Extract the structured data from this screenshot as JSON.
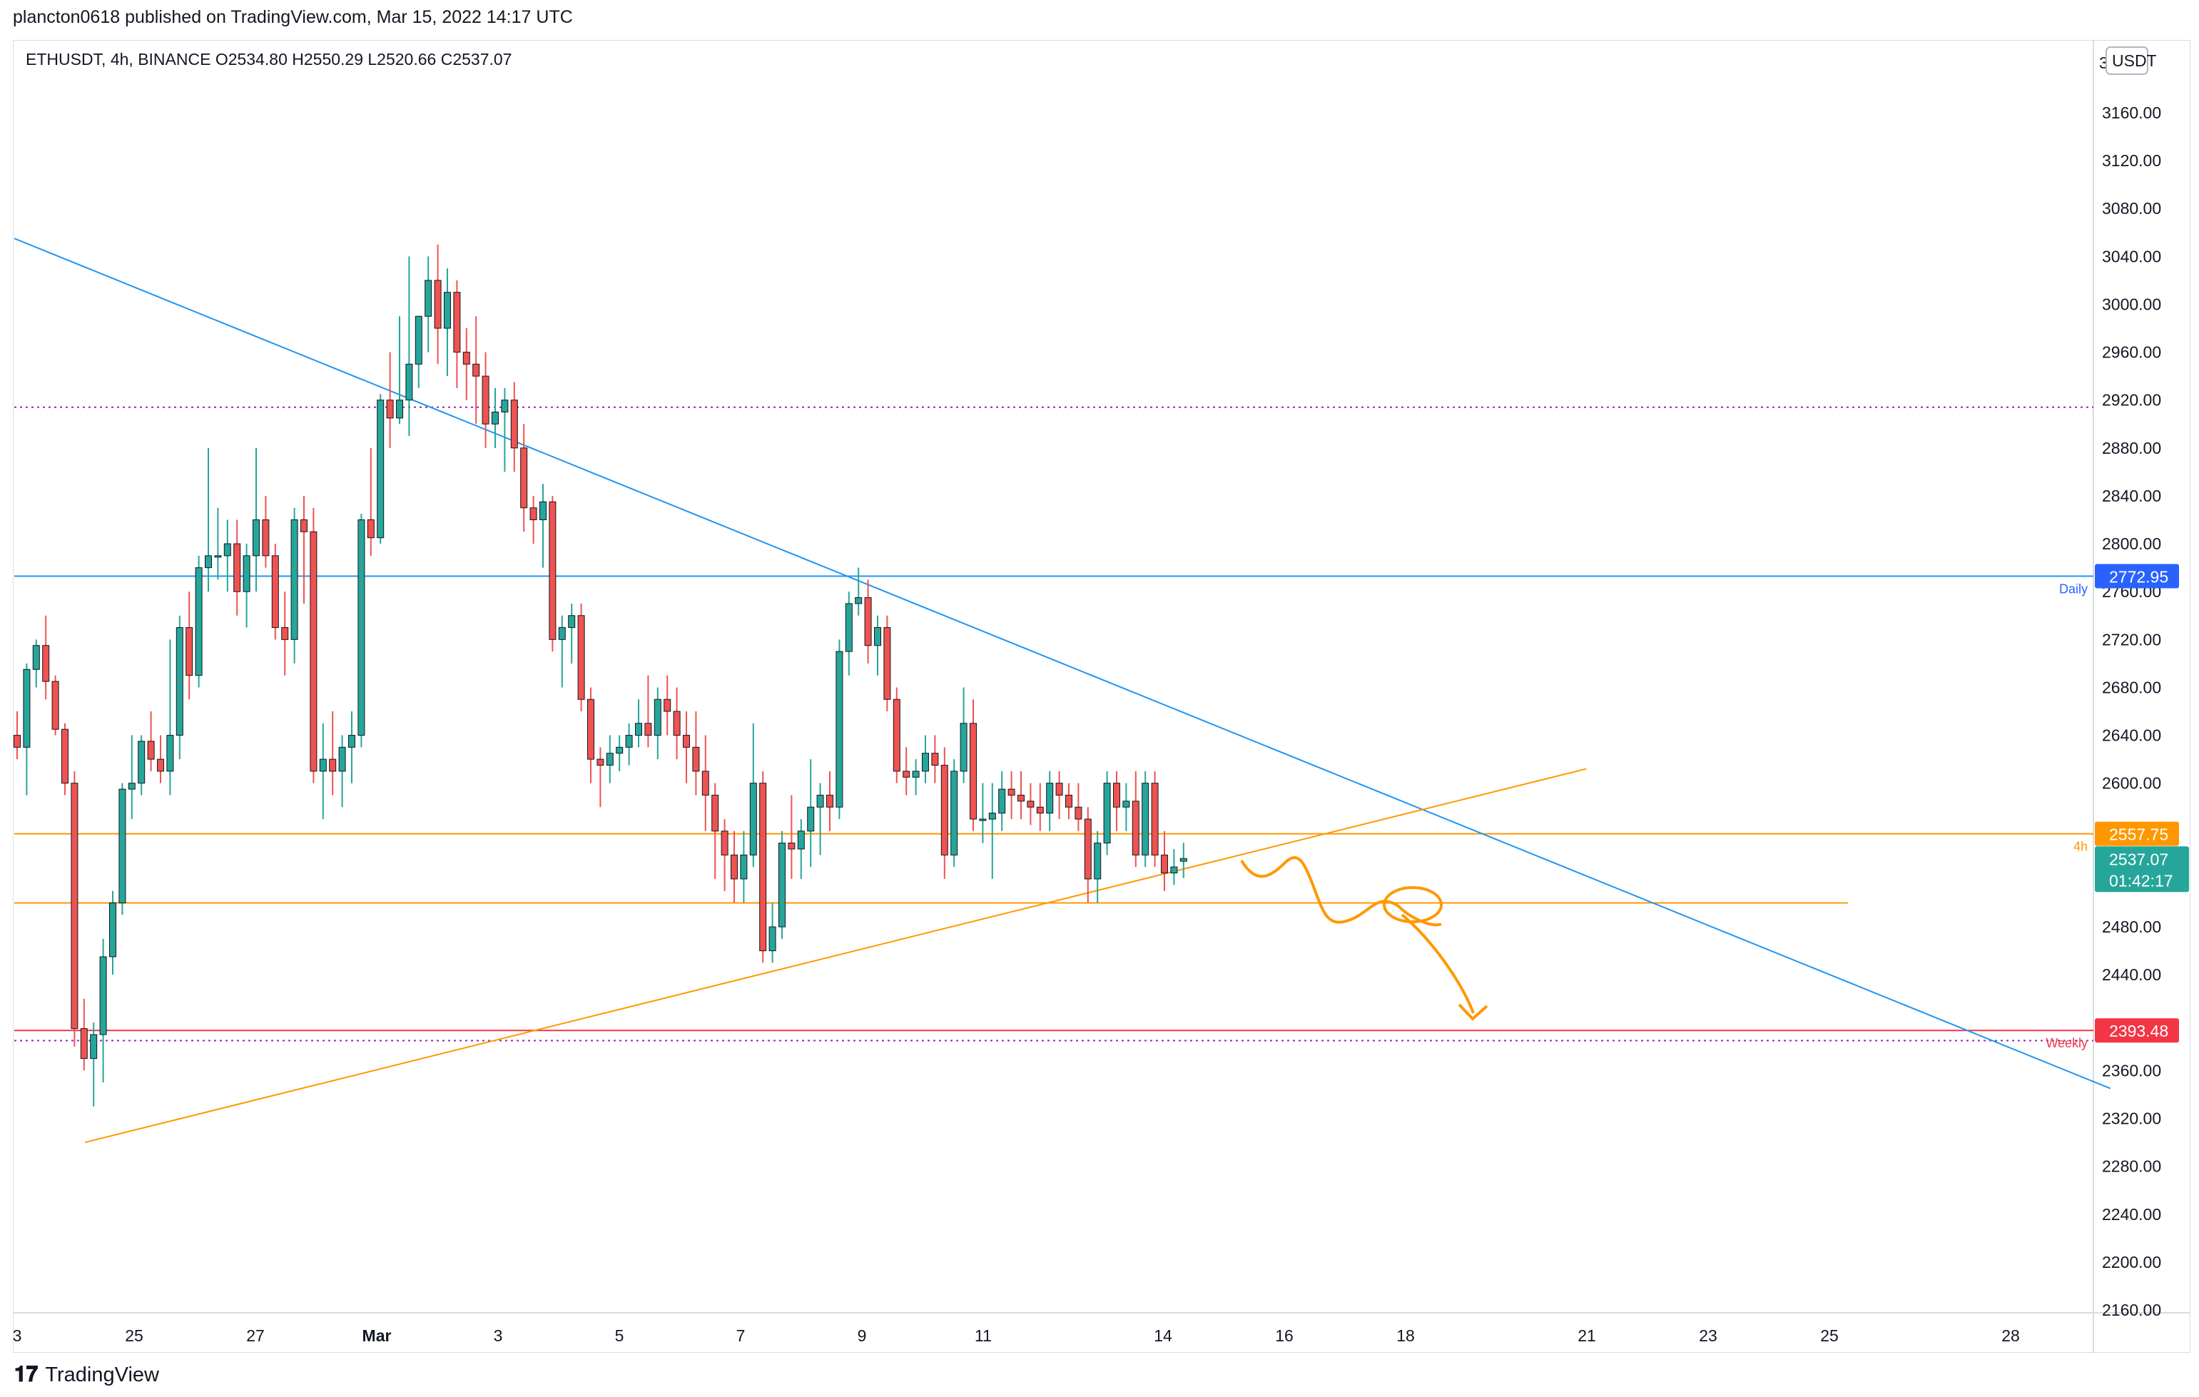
{
  "header": {
    "published": "plancton0618 published on TradingView.com, Mar 15, 2022 14:17 UTC",
    "symbol_line": "ETHUSDT, 4h, BINANCE  O2534.80  H2550.29  L2520.66  C2537.07",
    "currency_button": "USDT",
    "currency_partial": "3"
  },
  "footer": {
    "brand": "TradingView",
    "logo_icon": "tradingview-logo-icon"
  },
  "colors": {
    "up": "#26a69a",
    "down": "#ef5350",
    "trend_blue": "#2196f3",
    "support_orange": "#ff9800",
    "weekly_red": "#f23645",
    "purple_dotted": "#9c27b0",
    "daily_label_bg": "#2962ff"
  },
  "chart_data": {
    "type": "candlestick",
    "symbol": "ETHUSDT",
    "interval": "4h",
    "exchange": "BINANCE",
    "ohlc_last": {
      "open": 2534.8,
      "high": 2550.29,
      "low": 2520.66,
      "close": 2537.07
    },
    "ylim": [
      2120,
      3200
    ],
    "y_ticks": [
      3160,
      3120,
      3080,
      3040,
      3000,
      2960,
      2920,
      2880,
      2840,
      2800,
      2760,
      2720,
      2680,
      2640,
      2600,
      2480,
      2440,
      2360,
      2320,
      2280,
      2240,
      2200,
      2160
    ],
    "x_ticks": [
      "3",
      "25",
      "27",
      "Mar",
      "3",
      "5",
      "7",
      "9",
      "11",
      "14",
      "16",
      "18",
      "21",
      "23",
      "25",
      "28"
    ],
    "price_labels": [
      {
        "value": "2772.95",
        "tag": "Daily",
        "color": "#2962ff"
      },
      {
        "value": "2557.75",
        "tag": "4h",
        "color": "#ff9800"
      },
      {
        "value": "2537.07",
        "sub": "01:42:17",
        "color": "#26a69a"
      },
      {
        "value": "2393.48",
        "tag": "Weekly",
        "color": "#f23645"
      }
    ],
    "horizontal_levels": [
      {
        "price": 2914,
        "style": "dotted",
        "color": "#9c27b0"
      },
      {
        "price": 2772.95,
        "style": "solid",
        "color": "#2196f3"
      },
      {
        "price": 2557.75,
        "style": "solid",
        "color": "#ff9800"
      },
      {
        "price": 2500,
        "style": "solid",
        "color": "#ff9800"
      },
      {
        "price": 2393.48,
        "style": "solid",
        "color": "#f23645"
      },
      {
        "price": 2385,
        "style": "dotted",
        "color": "#9c27b0"
      }
    ],
    "trendlines": [
      {
        "name": "descending",
        "from": [
          0,
          3055
        ],
        "to": [
          1480,
          2345
        ],
        "color": "#2196f3"
      },
      {
        "name": "ascending",
        "from": [
          50,
          2300
        ],
        "to": [
          1110,
          2612
        ],
        "color": "#ff9800"
      }
    ],
    "candles": [
      [
        2640,
        2660,
        2620,
        2630
      ],
      [
        2630,
        2700,
        2590,
        2695
      ],
      [
        2695,
        2720,
        2680,
        2715
      ],
      [
        2715,
        2740,
        2670,
        2685
      ],
      [
        2685,
        2690,
        2640,
        2645
      ],
      [
        2645,
        2650,
        2590,
        2600
      ],
      [
        2600,
        2610,
        2380,
        2395
      ],
      [
        2395,
        2420,
        2360,
        2370
      ],
      [
        2370,
        2400,
        2330,
        2390
      ],
      [
        2390,
        2470,
        2350,
        2455
      ],
      [
        2455,
        2510,
        2440,
        2500
      ],
      [
        2500,
        2600,
        2490,
        2595
      ],
      [
        2595,
        2640,
        2570,
        2600
      ],
      [
        2600,
        2640,
        2590,
        2635
      ],
      [
        2635,
        2660,
        2610,
        2620
      ],
      [
        2620,
        2640,
        2600,
        2610
      ],
      [
        2610,
        2720,
        2590,
        2640
      ],
      [
        2640,
        2740,
        2620,
        2730
      ],
      [
        2730,
        2760,
        2670,
        2690
      ],
      [
        2690,
        2790,
        2680,
        2780
      ],
      [
        2780,
        2880,
        2760,
        2790
      ],
      [
        2790,
        2830,
        2770,
        2790
      ],
      [
        2790,
        2820,
        2760,
        2800
      ],
      [
        2800,
        2820,
        2740,
        2760
      ],
      [
        2760,
        2800,
        2730,
        2790
      ],
      [
        2790,
        2880,
        2760,
        2820
      ],
      [
        2820,
        2840,
        2780,
        2790
      ],
      [
        2790,
        2800,
        2720,
        2730
      ],
      [
        2730,
        2760,
        2690,
        2720
      ],
      [
        2720,
        2830,
        2700,
        2820
      ],
      [
        2820,
        2840,
        2750,
        2810
      ],
      [
        2810,
        2830,
        2600,
        2610
      ],
      [
        2610,
        2650,
        2570,
        2620
      ],
      [
        2620,
        2660,
        2590,
        2610
      ],
      [
        2610,
        2640,
        2580,
        2630
      ],
      [
        2630,
        2660,
        2600,
        2640
      ],
      [
        2640,
        2825,
        2630,
        2820
      ],
      [
        2820,
        2880,
        2790,
        2805
      ],
      [
        2805,
        2925,
        2800,
        2920
      ],
      [
        2920,
        2960,
        2880,
        2905
      ],
      [
        2905,
        2990,
        2900,
        2920
      ],
      [
        2920,
        3040,
        2890,
        2950
      ],
      [
        2950,
        2990,
        2930,
        2990
      ],
      [
        2990,
        3040,
        2960,
        3020
      ],
      [
        3020,
        3050,
        2950,
        2980
      ],
      [
        2980,
        3030,
        2940,
        3010
      ],
      [
        3010,
        3020,
        2930,
        2960
      ],
      [
        2960,
        2980,
        2920,
        2950
      ],
      [
        2950,
        2990,
        2900,
        2940
      ],
      [
        2940,
        2960,
        2880,
        2900
      ],
      [
        2900,
        2930,
        2880,
        2910
      ],
      [
        2910,
        2930,
        2860,
        2920
      ],
      [
        2920,
        2935,
        2860,
        2880
      ],
      [
        2880,
        2900,
        2810,
        2830
      ],
      [
        2830,
        2840,
        2800,
        2820
      ],
      [
        2820,
        2850,
        2780,
        2835
      ],
      [
        2835,
        2840,
        2710,
        2720
      ],
      [
        2720,
        2740,
        2680,
        2730
      ],
      [
        2730,
        2750,
        2700,
        2740
      ],
      [
        2740,
        2750,
        2660,
        2670
      ],
      [
        2670,
        2680,
        2600,
        2620
      ],
      [
        2620,
        2630,
        2580,
        2615
      ],
      [
        2615,
        2640,
        2600,
        2625
      ],
      [
        2625,
        2640,
        2610,
        2630
      ],
      [
        2630,
        2650,
        2615,
        2640
      ],
      [
        2640,
        2670,
        2630,
        2650
      ],
      [
        2650,
        2690,
        2630,
        2640
      ],
      [
        2640,
        2680,
        2620,
        2670
      ],
      [
        2670,
        2690,
        2640,
        2660
      ],
      [
        2660,
        2680,
        2620,
        2640
      ],
      [
        2640,
        2660,
        2600,
        2630
      ],
      [
        2630,
        2660,
        2590,
        2610
      ],
      [
        2610,
        2640,
        2560,
        2590
      ],
      [
        2590,
        2600,
        2520,
        2560
      ],
      [
        2560,
        2570,
        2510,
        2540
      ],
      [
        2540,
        2560,
        2500,
        2520
      ],
      [
        2520,
        2560,
        2500,
        2540
      ],
      [
        2540,
        2650,
        2530,
        2600
      ],
      [
        2600,
        2610,
        2450,
        2460
      ],
      [
        2460,
        2500,
        2450,
        2480
      ],
      [
        2480,
        2560,
        2470,
        2550
      ],
      [
        2550,
        2590,
        2520,
        2545
      ],
      [
        2545,
        2570,
        2520,
        2560
      ],
      [
        2560,
        2620,
        2530,
        2580
      ],
      [
        2580,
        2600,
        2540,
        2590
      ],
      [
        2590,
        2610,
        2560,
        2580
      ],
      [
        2580,
        2720,
        2570,
        2710
      ],
      [
        2710,
        2760,
        2690,
        2750
      ],
      [
        2750,
        2780,
        2740,
        2755
      ],
      [
        2755,
        2770,
        2700,
        2715
      ],
      [
        2715,
        2740,
        2690,
        2730
      ],
      [
        2730,
        2740,
        2660,
        2670
      ],
      [
        2670,
        2680,
        2600,
        2610
      ],
      [
        2610,
        2630,
        2590,
        2605
      ],
      [
        2605,
        2620,
        2590,
        2610
      ],
      [
        2610,
        2640,
        2600,
        2625
      ],
      [
        2625,
        2640,
        2600,
        2615
      ],
      [
        2615,
        2630,
        2520,
        2540
      ],
      [
        2540,
        2620,
        2530,
        2610
      ],
      [
        2610,
        2680,
        2600,
        2650
      ],
      [
        2650,
        2670,
        2560,
        2570
      ],
      [
        2570,
        2600,
        2550,
        2570
      ],
      [
        2570,
        2600,
        2520,
        2575
      ],
      [
        2575,
        2610,
        2560,
        2595
      ],
      [
        2595,
        2610,
        2570,
        2590
      ],
      [
        2590,
        2610,
        2570,
        2585
      ],
      [
        2585,
        2600,
        2565,
        2580
      ],
      [
        2580,
        2600,
        2560,
        2575
      ],
      [
        2575,
        2610,
        2560,
        2600
      ],
      [
        2600,
        2610,
        2570,
        2590
      ],
      [
        2590,
        2600,
        2570,
        2580
      ],
      [
        2580,
        2600,
        2560,
        2570
      ],
      [
        2570,
        2580,
        2500,
        2520
      ],
      [
        2520,
        2560,
        2500,
        2550
      ],
      [
        2550,
        2610,
        2540,
        2600
      ],
      [
        2600,
        2610,
        2560,
        2580
      ],
      [
        2580,
        2600,
        2560,
        2585
      ],
      [
        2585,
        2610,
        2530,
        2540
      ],
      [
        2540,
        2610,
        2530,
        2600
      ],
      [
        2600,
        2610,
        2530,
        2540
      ],
      [
        2540,
        2560,
        2510,
        2525
      ],
      [
        2525,
        2545,
        2515,
        2530
      ],
      [
        2534.8,
        2550.29,
        2520.66,
        2537.07
      ]
    ],
    "annotations": [
      {
        "type": "freehand",
        "color": "#ff9800",
        "description": "projected path down to weekly level with arrow"
      }
    ]
  }
}
